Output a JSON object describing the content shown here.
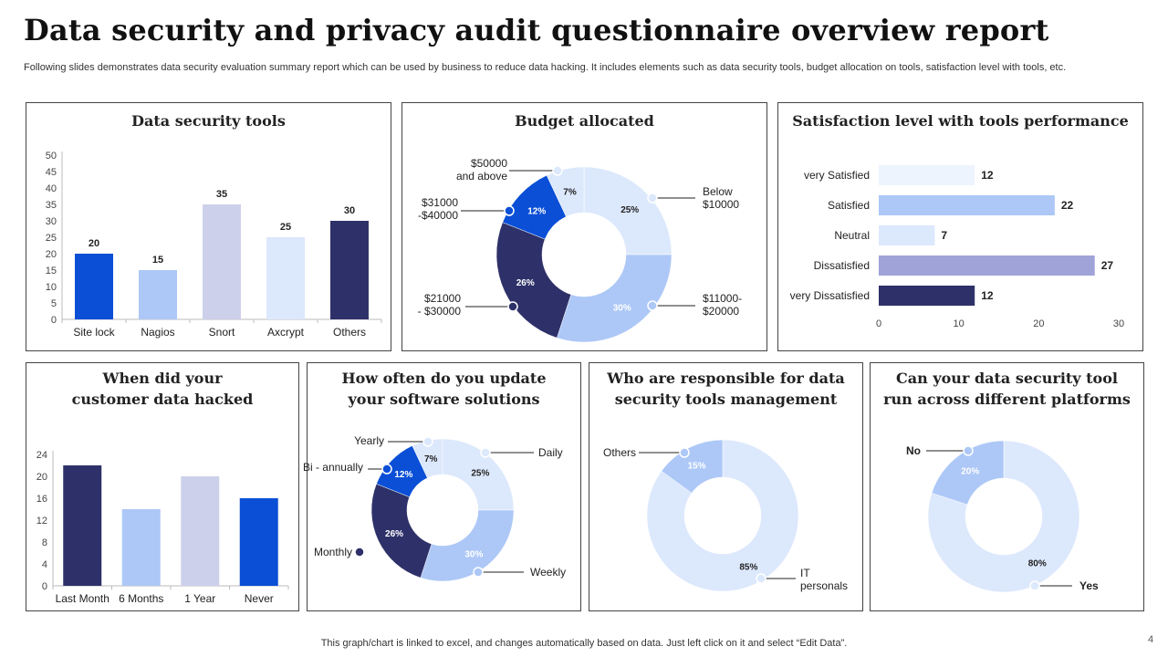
{
  "header": {
    "title": "Data security and privacy audit questionnaire overview report",
    "subtitle": "Following slides demonstrates data security evaluation summary report which can be used by business to reduce data hacking. It includes elements such as data security tools, budget allocation on tools, satisfaction level with tools, etc."
  },
  "footer": {
    "note": "This graph/chart is linked to excel, and changes automatically based on data. Just left click on it and select “Edit Data”.",
    "page": "4"
  },
  "colors": {
    "dark_navy": "#2e3169",
    "blue": "#0a4fd6",
    "light_blue": "#adc8f7",
    "lavender": "#cdd0ea",
    "pale_blue": "#dce8fc",
    "very_pale": "#eef4fe",
    "purple": "#9fa3d8"
  },
  "chart_data": [
    {
      "type": "bar",
      "title": "Data security tools",
      "categories": [
        "Site lock",
        "Nagios",
        "Snort",
        "Axcrypt",
        "Others"
      ],
      "values": [
        20,
        15,
        35,
        25,
        30
      ],
      "ylim": [
        0,
        50
      ],
      "yticks": [
        "0",
        "5",
        "10",
        "15",
        "20",
        "25",
        "30",
        "35",
        "40",
        "45",
        "50"
      ],
      "data_labels": true,
      "colors": [
        "#0a4fd6",
        "#adc8f7",
        "#cdd0ea",
        "#dce8fc",
        "#2e3169"
      ]
    },
    {
      "type": "pie",
      "subtype": "donut",
      "title": "Budget allocated",
      "categories": [
        "Below $10000",
        "$11000-$20000",
        "$21000 - $30000",
        "$31000 -$40000",
        "$50000 and above"
      ],
      "label_lines": [
        [
          "Below",
          "$10000"
        ],
        [
          "$11000-",
          "$20000"
        ],
        [
          "$21000",
          "- $30000"
        ],
        [
          "$31000",
          "-$40000"
        ],
        [
          "$50000",
          "and above"
        ]
      ],
      "values": [
        25,
        30,
        26,
        12,
        7
      ],
      "value_labels": [
        "25%",
        "30%",
        "26%",
        "12%",
        "7%"
      ],
      "colors": [
        "#dce8fc",
        "#adc8f7",
        "#2e3169",
        "#0a4fd6",
        "#dce8fc"
      ]
    },
    {
      "type": "bar",
      "orientation": "horizontal",
      "title": "Satisfaction level with tools performance",
      "categories": [
        "very Satisfied",
        "Satisfied",
        "Neutral",
        "Dissatisfied",
        "very Dissatisfied"
      ],
      "values": [
        12,
        22,
        7,
        27,
        12
      ],
      "xlim": [
        0,
        30
      ],
      "xticks": [
        "0",
        "10",
        "20",
        "30"
      ],
      "data_labels": true,
      "colors": [
        "#eef4fe",
        "#adc8f7",
        "#dce8fc",
        "#9fa3d8",
        "#2e3169"
      ]
    },
    {
      "type": "bar",
      "title_lines": [
        "When did your",
        "customer data hacked"
      ],
      "categories": [
        "Last Month",
        "6  Months",
        "1 Year",
        "Never"
      ],
      "values": [
        22,
        14,
        20,
        16
      ],
      "ylim": [
        0,
        24
      ],
      "yticks": [
        "0",
        "4",
        "8",
        "12",
        "16",
        "20",
        "24"
      ],
      "colors": [
        "#2e3169",
        "#adc8f7",
        "#cdd0ea",
        "#0a4fd6"
      ]
    },
    {
      "type": "pie",
      "subtype": "donut",
      "title_lines": [
        "How often do you update",
        "your software solutions"
      ],
      "categories": [
        "Daily",
        "Weekly",
        "Monthly",
        "Bi - annually",
        "Yearly"
      ],
      "values": [
        25,
        30,
        26,
        12,
        7
      ],
      "value_labels": [
        "25%",
        "30%",
        "26%",
        "12%",
        "7%"
      ],
      "colors": [
        "#dce8fc",
        "#adc8f7",
        "#2e3169",
        "#0a4fd6",
        "#dce8fc"
      ]
    },
    {
      "type": "pie",
      "subtype": "donut",
      "title_lines": [
        "Who are responsible for data",
        "security tools management"
      ],
      "categories": [
        "IT personals",
        "Others"
      ],
      "label_lines": [
        [
          "IT",
          "personals"
        ],
        [
          "Others"
        ]
      ],
      "values": [
        85,
        15
      ],
      "value_labels": [
        "85%",
        "15%"
      ],
      "colors": [
        "#dce8fc",
        "#adc8f7"
      ]
    },
    {
      "type": "pie",
      "subtype": "donut",
      "title_lines": [
        "Can your data security tool",
        "run across different platforms"
      ],
      "categories": [
        "Yes",
        "No"
      ],
      "values": [
        80,
        20
      ],
      "value_labels": [
        "80%",
        "20%"
      ],
      "colors": [
        "#dce8fc",
        "#adc8f7"
      ]
    }
  ]
}
